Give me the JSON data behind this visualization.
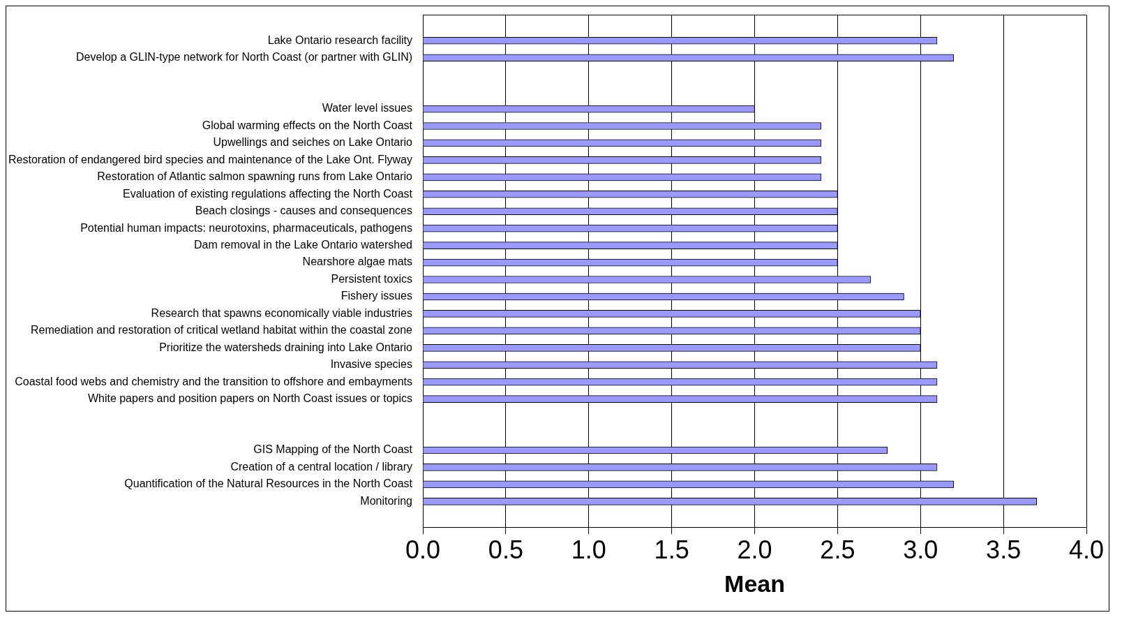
{
  "chart_data": {
    "type": "bar",
    "orientation": "horizontal",
    "xlabel": "Mean",
    "categories": [
      null,
      "Lake Ontario research facility",
      "Develop a GLIN-type network for North Coast (or partner with GLIN)",
      null,
      null,
      "Water level issues",
      "Global warming effects on the North Coast",
      "Upwellings and seiches on Lake Ontario",
      "Restoration of endangered bird species and maintenance of the Lake Ont. Flyway",
      "Restoration of Atlantic salmon spawning runs from Lake Ontario",
      "Evaluation of existing regulations affecting the North Coast",
      "Beach closings - causes and consequences",
      "Potential human impacts: neurotoxins, pharmaceuticals, pathogens",
      "Dam removal in the Lake Ontario watershed",
      "Nearshore algae mats",
      "Persistent toxics",
      "Fishery issues",
      "Research that spawns economically viable industries",
      "Remediation and restoration of critical wetland habitat within the coastal zone",
      "Prioritize the watersheds draining into Lake Ontario",
      "Invasive species",
      "Coastal food webs and chemistry and the transition to offshore and embayments",
      "White papers and position papers on North Coast issues or topics",
      null,
      null,
      "GIS Mapping of the North Coast",
      "Creation of a central location / library",
      "Quantification of the Natural Resources in the North Coast",
      "Monitoring",
      null
    ],
    "values": [
      null,
      3.1,
      3.2,
      null,
      null,
      2.0,
      2.4,
      2.4,
      2.4,
      2.4,
      2.5,
      2.5,
      2.5,
      2.5,
      2.5,
      2.7,
      2.9,
      3.0,
      3.0,
      3.0,
      3.1,
      3.1,
      3.1,
      null,
      null,
      2.8,
      3.1,
      3.2,
      3.7,
      null
    ],
    "color": "#9999ff",
    "xlim": [
      0,
      4
    ],
    "xticks": [
      {
        "value": 0,
        "label": "0.0"
      },
      {
        "value": 0.5,
        "label": "0.5"
      },
      {
        "value": 1,
        "label": "1.0"
      },
      {
        "value": 1.5,
        "label": "1.5"
      },
      {
        "value": 2,
        "label": "2.0"
      },
      {
        "value": 2.5,
        "label": "2.5"
      },
      {
        "value": 3,
        "label": "3.0"
      },
      {
        "value": 3.5,
        "label": "3.5"
      },
      {
        "value": 4,
        "label": "4.0"
      }
    ],
    "grid": "x",
    "legend": false
  }
}
